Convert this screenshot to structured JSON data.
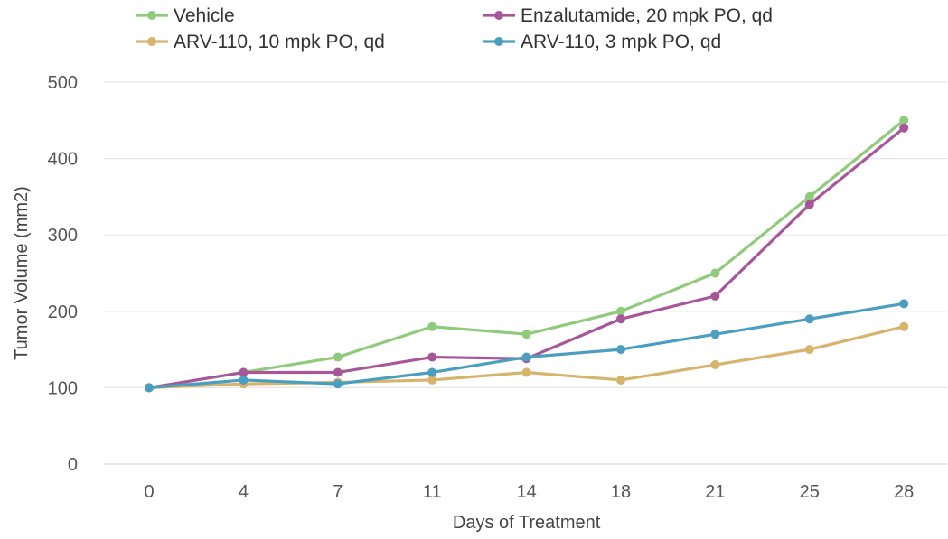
{
  "chart_data": {
    "type": "line",
    "title": "",
    "xlabel": "Days of Treatment",
    "ylabel": "Tumor Volume (mm2)",
    "categories": [
      "0",
      "4",
      "7",
      "11",
      "14",
      "18",
      "21",
      "25",
      "28"
    ],
    "ylim": [
      0,
      500
    ],
    "yticks": [
      0,
      100,
      200,
      300,
      400,
      500
    ],
    "grid": "horizontal",
    "legend_position": "top",
    "series": [
      {
        "name": "Vehicle",
        "color": "#8fcb7a",
        "values": [
          100,
          120,
          140,
          180,
          170,
          200,
          250,
          350,
          450
        ]
      },
      {
        "name": "Enzalutamide, 20 mpk PO, qd",
        "color": "#a8569a",
        "values": [
          100,
          120,
          120,
          140,
          138,
          190,
          220,
          340,
          440
        ]
      },
      {
        "name": "ARV-110, 10 mpk PO, qd",
        "color": "#d6b46c",
        "values": [
          100,
          105,
          107,
          110,
          120,
          110,
          130,
          150,
          180
        ]
      },
      {
        "name": "ARV-110, 3 mpk PO, qd",
        "color": "#4a9fc0",
        "values": [
          100,
          110,
          105,
          120,
          140,
          150,
          170,
          190,
          210
        ]
      }
    ]
  }
}
